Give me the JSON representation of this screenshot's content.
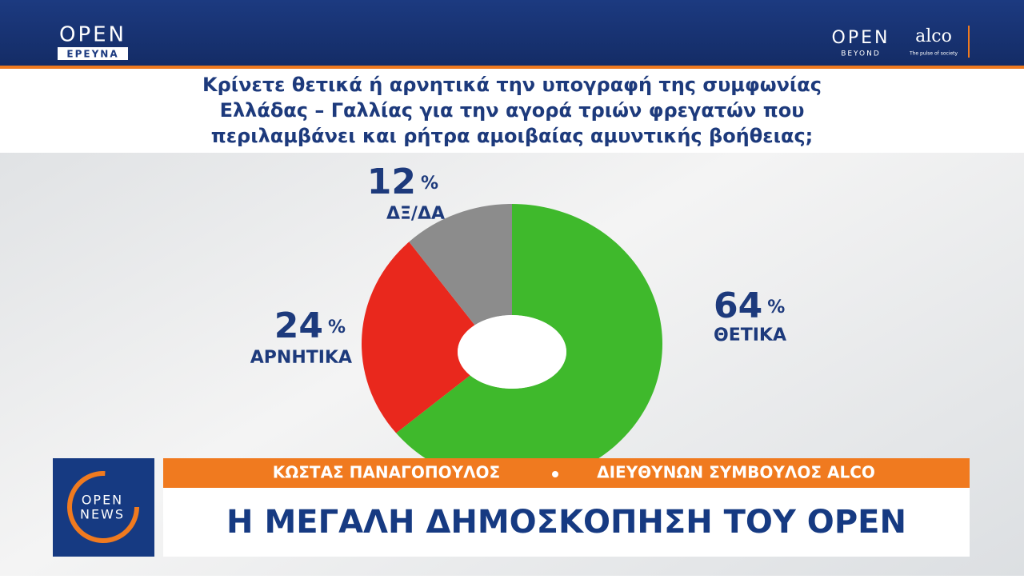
{
  "header": {
    "left_logo": "OPEN",
    "left_logo_sub": "ΕΡΕΥΝΑ",
    "right_logo": "OPEN",
    "right_logo_sub": "BEYOND",
    "partner": "alco",
    "partner_tagline": "The pulse of society"
  },
  "chart_data": {
    "type": "donut",
    "title": "Κρίνετε θετικά ή αρνητικά την υπογραφή της συμφωνίας Ελλάδας – Γαλλίας για την αγορά τριών φρεγατών που περιλαμβάνει και ρήτρα αμοιβαίας αμυντικής βοήθειας;",
    "categories": [
      "ΘΕΤΙΚΑ",
      "ΑΡΝΗΤΙΚΑ",
      "ΔΞ/ΔΑ"
    ],
    "values": [
      64,
      24,
      12
    ],
    "value_unit": "%",
    "colors": [
      "#3fb92c",
      "#e9281d",
      "#8c8c8c"
    ]
  },
  "lower_third": {
    "logo": "OPEN",
    "logo_sub": "NEWS",
    "name": "ΚΩΣΤΑΣ ΠΑΝΑΓΟΠΟΥΛΟΣ",
    "role": "ΔΙΕΥΘΥΝΩΝ ΣΥΜΒΟΥΛΟΣ ALCO",
    "headline": "Η ΜΕΓΑΛΗ ΔΗΜΟΣΚΟΠΗΣΗ ΤΟΥ OPEN"
  }
}
